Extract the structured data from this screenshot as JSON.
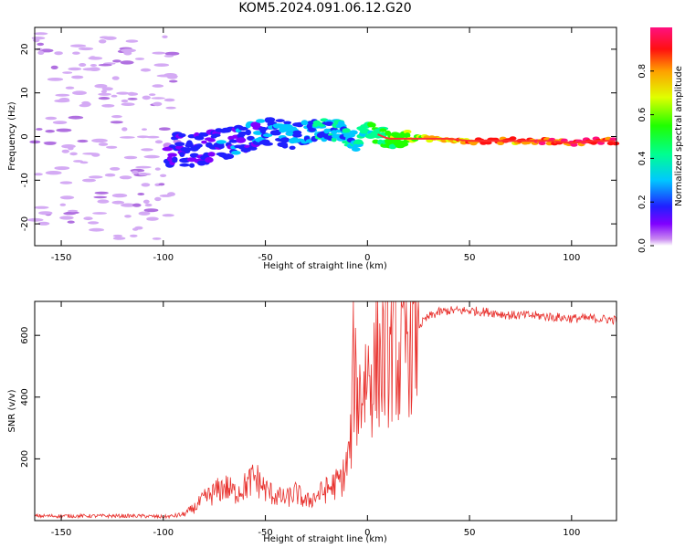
{
  "title": "KOM5.2024.091.06.12.G20",
  "chart_data": [
    {
      "type": "heatmap",
      "name": "spectrogram",
      "xlabel": "Height of straight line (km)",
      "ylabel": "Frequency (Hz)",
      "xlim": [
        -163,
        122
      ],
      "ylim": [
        -25,
        25
      ],
      "xticks": [
        -150,
        -100,
        -50,
        0,
        50,
        100
      ],
      "yticks": [
        -20,
        -10,
        0,
        10,
        20
      ],
      "colorbar": {
        "label": "Normalized spectral amplitude",
        "range": [
          0,
          1
        ],
        "ticks": [
          0.0,
          0.2,
          0.4,
          0.6,
          0.8
        ],
        "colormap": "gist_rainbow_r"
      },
      "noise_region_km": [
        -163,
        -95
      ],
      "trace": {
        "x": [
          -95,
          -85,
          -75,
          -65,
          -55,
          -45,
          -35,
          -25,
          -15,
          -5,
          0,
          10,
          20,
          30,
          40,
          50,
          60,
          70,
          80,
          90,
          100,
          110,
          122
        ],
        "y": [
          -3.5,
          -3,
          -2,
          -1,
          0.5,
          1,
          0,
          1.5,
          1.5,
          -1,
          1.5,
          -0.5,
          -0.5,
          -0.5,
          -0.5,
          -1,
          -1,
          -1,
          -1,
          -1,
          -1.5,
          -1,
          -1
        ],
        "amplitude": [
          0.18,
          0.2,
          0.22,
          0.24,
          0.26,
          0.28,
          0.3,
          0.34,
          0.36,
          0.4,
          0.48,
          0.58,
          0.68,
          0.75,
          0.8,
          0.85,
          0.9,
          0.88,
          0.9,
          0.95,
          0.96,
          0.95,
          0.94
        ]
      }
    },
    {
      "type": "line",
      "name": "snr",
      "xlabel": "Height of straight line (km)",
      "ylabel": "SNR (v/v)",
      "xlim": [
        -163,
        122
      ],
      "ylim": [
        0,
        710
      ],
      "xticks": [
        -150,
        -100,
        -50,
        0,
        50,
        100
      ],
      "yticks": [
        200,
        400,
        600
      ],
      "color": "#e8312d",
      "series": [
        {
          "x": [
            -163,
            -140,
            -110,
            -100,
            -95,
            -90,
            -85,
            -80,
            -75,
            -70,
            -65,
            -60,
            -55,
            -50,
            -45,
            -40,
            -35,
            -30,
            -25,
            -20,
            -15,
            -12,
            -10,
            -8,
            -7,
            -5,
            -3,
            0,
            3,
            5,
            8,
            10,
            12,
            14,
            15,
            17,
            20,
            25,
            30,
            35,
            40,
            50,
            60,
            70,
            80,
            90,
            100,
            110,
            122
          ],
          "y": [
            15,
            15,
            15,
            12,
            15,
            20,
            40,
            70,
            90,
            110,
            90,
            110,
            140,
            100,
            80,
            70,
            90,
            60,
            80,
            100,
            120,
            140,
            180,
            260,
            500,
            400,
            420,
            480,
            470,
            520,
            520,
            540,
            560,
            600,
            480,
            560,
            600,
            630,
            660,
            675,
            680,
            680,
            675,
            665,
            665,
            660,
            655,
            655,
            650
          ]
        }
      ]
    }
  ]
}
